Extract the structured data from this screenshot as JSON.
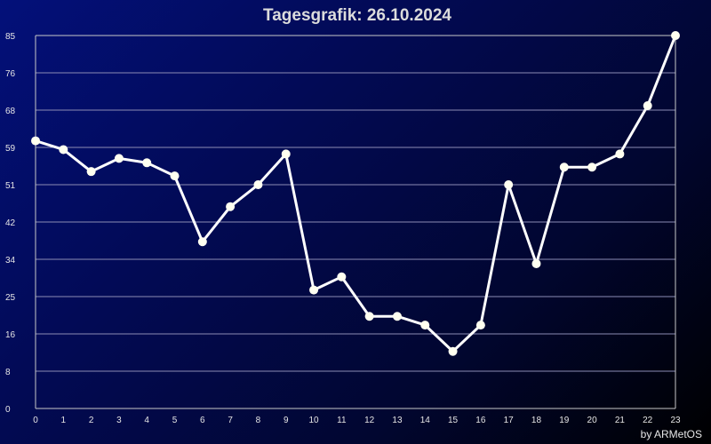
{
  "chart_data": {
    "type": "line",
    "title": "Tagesgrafik: 26.10.2024",
    "xlabel": "",
    "ylabel": "",
    "x": [
      0,
      1,
      2,
      3,
      4,
      5,
      6,
      7,
      8,
      9,
      10,
      11,
      12,
      13,
      14,
      15,
      16,
      17,
      18,
      19,
      20,
      21,
      22,
      23
    ],
    "x_tick_labels": [
      "0",
      "1",
      "2",
      "3",
      "4",
      "5",
      "6",
      "7",
      "8",
      "9",
      "10",
      "11",
      "12",
      "13",
      "14",
      "15",
      "16",
      "17",
      "18",
      "19",
      "20",
      "21",
      "22",
      "23"
    ],
    "y_tick_labels": [
      "0",
      "8",
      "16",
      "25",
      "34",
      "42",
      "51",
      "59",
      "68",
      "76",
      "85"
    ],
    "ylim": [
      0,
      85
    ],
    "xlim": [
      0,
      23
    ],
    "grid": true,
    "series": [
      {
        "values": [
          61,
          59,
          54,
          57,
          56,
          53,
          38,
          46,
          51,
          58,
          27,
          30,
          21,
          21,
          19,
          13,
          19,
          51,
          33,
          55,
          55,
          58,
          69,
          85
        ]
      }
    ],
    "colors": {
      "line": "#ffffff",
      "marker": "#fffff0",
      "grid": "#8c8cb4",
      "axis": "#c8c8c8",
      "text": "#e6e6e6"
    }
  },
  "credit": "by ARMetOS"
}
